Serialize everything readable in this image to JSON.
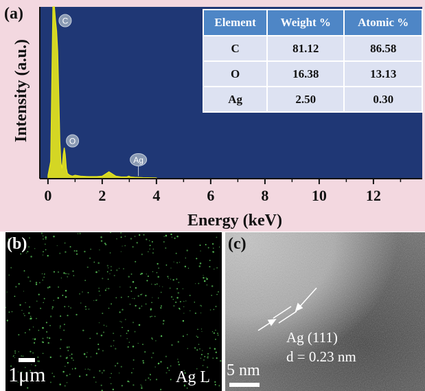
{
  "panel_a": {
    "label": "(a)",
    "chart_data": {
      "type": "line",
      "xlabel": "Energy (keV)",
      "ylabel": "Intensity (a.u.)",
      "xlim": [
        -0.3,
        13.8
      ],
      "xticks": [
        0,
        2,
        4,
        6,
        8,
        10,
        12
      ],
      "ylim": [
        0,
        100
      ],
      "background": "#1f3775",
      "line_color": "#e8e81c",
      "series": [
        {
          "x": [
            0.0,
            0.1,
            0.18,
            0.24,
            0.28,
            0.32,
            0.36,
            0.4,
            0.44,
            0.48,
            0.52,
            0.56,
            0.6,
            0.64,
            0.68,
            0.72,
            0.8,
            0.9,
            1.0,
            1.2,
            1.5,
            1.8,
            2.0,
            2.15,
            2.25,
            2.35,
            2.5,
            2.7,
            2.9,
            2.98,
            3.05,
            3.2,
            3.5,
            4.0
          ],
          "y": [
            2,
            10,
            100,
            100,
            92,
            86,
            74,
            48,
            22,
            9,
            6,
            14,
            18,
            14,
            6,
            3,
            2,
            1.5,
            2,
            1.5,
            1.2,
            1.2,
            1.5,
            3,
            4,
            3,
            1.5,
            1,
            1,
            1.5,
            1,
            0.8,
            0.6,
            0.5
          ]
        }
      ],
      "peak_labels": [
        {
          "text": "C",
          "x": 0.28,
          "y": 92
        },
        {
          "text": "O",
          "x": 0.55,
          "y": 22
        },
        {
          "text": "Ag",
          "x": 2.98,
          "y": 11
        }
      ]
    },
    "table": {
      "headers": [
        "Element",
        "Weight %",
        "Atomic %"
      ],
      "rows": [
        [
          "C",
          "81.12",
          "86.58"
        ],
        [
          "O",
          "16.38",
          "13.13"
        ],
        [
          "Ag",
          "2.50",
          "0.30"
        ]
      ]
    }
  },
  "panel_b": {
    "label": "(b)",
    "scale_bar": "1μm",
    "map_label": "Ag L",
    "dot_color": "#5dcc5d"
  },
  "panel_c": {
    "label": "(c)",
    "scale_bar": "5 nm",
    "annotation_plane": "Ag (111)",
    "annotation_spacing": "d = 0.23 nm"
  }
}
